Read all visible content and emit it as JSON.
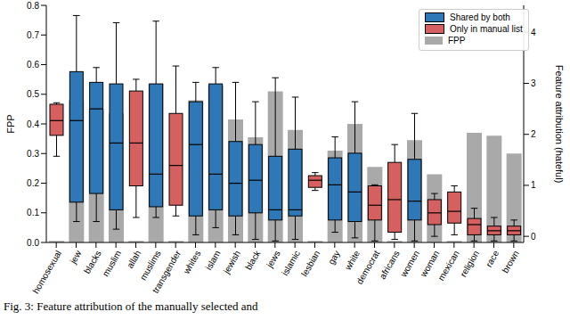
{
  "chart_data": {
    "type": "boxplot",
    "caption": "Fig. 3: Feature attribution of the manually selected and",
    "ylabel": "FPP",
    "y2label": "Feature attribution (hateful)",
    "categories": [
      "homosexual",
      "jew",
      "blacks",
      "muslim",
      "allah",
      "muslims",
      "transgender",
      "whites",
      "islam",
      "jewish",
      "black",
      "jews",
      "islamic",
      "lesbian",
      "gay",
      "white",
      "democrat",
      "africans",
      "women",
      "woman",
      "mexican",
      "religion",
      "race",
      "brown"
    ],
    "ylim": [
      0,
      0.8
    ],
    "yticks": [
      {
        "value": 0,
        "label": "0.0"
      },
      0.1,
      0.2,
      0.3,
      0.4,
      0.5,
      0.6,
      0.7,
      0.8
    ],
    "y2lim": [
      -0.12,
      4.53
    ],
    "y2ticks": [
      0,
      1,
      2,
      3,
      4
    ],
    "legend": "upper right",
    "grid": false,
    "series": [
      {
        "name": "Shared by both",
        "type": "box",
        "axis": "y2",
        "color": "#2f78b7",
        "boxes": [
          null,
          {
            "low": 0.29,
            "q1": 0.67,
            "median": 2.27,
            "q3": 3.23,
            "high": 4.33
          },
          {
            "low": 0.29,
            "q1": 0.84,
            "median": 2.5,
            "q3": 3.02,
            "high": 3.31
          },
          {
            "low": 0.14,
            "q1": 0.52,
            "median": 1.83,
            "q3": 2.99,
            "high": 4.19
          },
          null,
          {
            "low": 0.37,
            "q1": 0.58,
            "median": 1.22,
            "q3": 2.99,
            "high": 4.22
          },
          null,
          {
            "low": 0.03,
            "q1": 0.4,
            "median": 1.8,
            "q3": 2.64,
            "high": 3.02
          },
          {
            "low": 0.17,
            "q1": 0.52,
            "median": 1.22,
            "q3": 2.99,
            "high": 3.31
          },
          {
            "low": 0.03,
            "q1": 0.4,
            "median": 1.04,
            "q3": 1.86,
            "high": 3.02
          },
          {
            "low": -0.06,
            "q1": 0.46,
            "median": 1.1,
            "q3": 1.8,
            "high": 2.64
          },
          {
            "low": -0.09,
            "q1": 0.32,
            "median": 0.52,
            "q3": 1.57,
            "high": 3.11
          },
          {
            "low": -0.06,
            "q1": 0.4,
            "median": 0.52,
            "q3": 1.71,
            "high": 2.73
          },
          null,
          {
            "low": 0.08,
            "q1": 0.32,
            "median": 1.01,
            "q3": 1.54,
            "high": 1.95
          },
          {
            "low": -0.03,
            "q1": 0.29,
            "median": 0.87,
            "q3": 1.63,
            "high": 2.64
          },
          null,
          null,
          {
            "low": -0.09,
            "q1": 0.32,
            "median": 0.69,
            "q3": 1.51,
            "high": 2.41
          },
          null,
          null,
          null,
          null,
          null
        ]
      },
      {
        "name": "Only in manual list",
        "type": "box",
        "axis": "y2",
        "color": "#d65f5f",
        "boxes": [
          {
            "low": 1.57,
            "q1": 1.98,
            "median": 2.27,
            "q3": 2.59,
            "high": 2.62
          },
          null,
          null,
          null,
          {
            "low": 0.37,
            "q1": 0.99,
            "median": 1.83,
            "q3": 2.85,
            "high": 3.08
          },
          null,
          {
            "low": 0.4,
            "q1": 0.61,
            "median": 1.39,
            "q3": 2.41,
            "high": 3.34
          },
          null,
          null,
          null,
          null,
          null,
          null,
          {
            "low": 0.9,
            "q1": 0.96,
            "median": 1.1,
            "q3": 1.19,
            "high": 1.25
          },
          null,
          null,
          {
            "low": -0.09,
            "q1": 0.32,
            "median": 0.61,
            "q3": 0.99,
            "high": 1.01
          },
          {
            "low": -0.06,
            "q1": 0.08,
            "median": 0.72,
            "q3": 1.45,
            "high": 1.8
          },
          null,
          {
            "low": 0.0,
            "q1": 0.23,
            "median": 0.46,
            "q3": 0.72,
            "high": 0.84
          },
          {
            "low": 0.03,
            "q1": 0.26,
            "median": 0.49,
            "q3": 0.87,
            "high": 0.99
          },
          {
            "low": -0.09,
            "q1": 0.03,
            "median": 0.23,
            "q3": 0.35,
            "high": 0.55
          },
          {
            "low": -0.09,
            "q1": 0.03,
            "median": 0.11,
            "q3": 0.2,
            "high": 0.37
          },
          {
            "low": -0.09,
            "q1": 0.03,
            "median": 0.11,
            "q3": 0.2,
            "high": 0.32
          }
        ]
      },
      {
        "name": "FPP",
        "type": "bar",
        "axis": "y",
        "color": "#a9a9a9",
        "values": [
          0.005,
          0.48,
          0.45,
          0.435,
          0.005,
          0.535,
          0.005,
          0.48,
          0.53,
          0.415,
          0.355,
          0.51,
          0.38,
          0.005,
          0.31,
          0.4,
          0.255,
          0.005,
          0.345,
          0.23,
          0.005,
          0.37,
          0.36,
          0.3
        ]
      }
    ]
  }
}
